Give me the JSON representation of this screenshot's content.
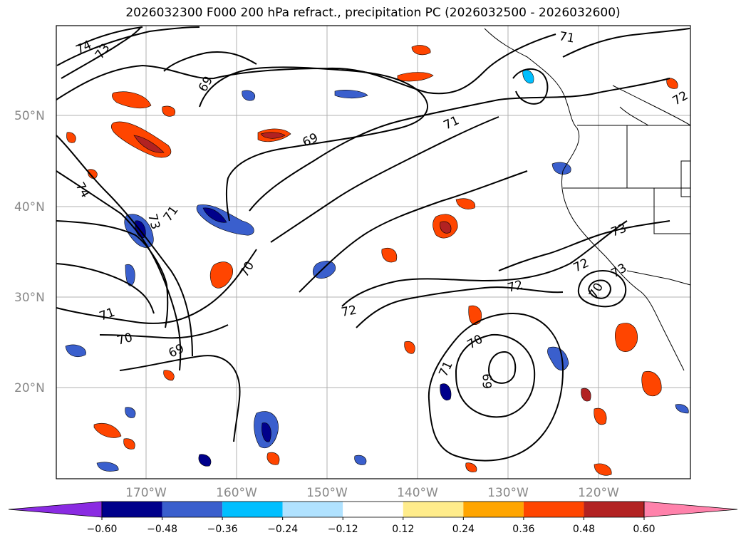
{
  "title": "2026032300 F000 200 hPa refract., precipitation PC (2026032500 - 2026032600)",
  "map": {
    "lat_ticks": [
      {
        "label": "50°N",
        "lat": 50
      },
      {
        "label": "40°N",
        "lat": 40
      },
      {
        "label": "30°N",
        "lat": 30
      },
      {
        "label": "20°N",
        "lat": 20
      }
    ],
    "lon_ticks": [
      {
        "label": "170°W",
        "lon": -170
      },
      {
        "label": "160°W",
        "lon": -160
      },
      {
        "label": "150°W",
        "lon": -150
      },
      {
        "label": "140°W",
        "lon": -140
      },
      {
        "label": "130°W",
        "lon": -130
      },
      {
        "label": "120°W",
        "lon": -120
      }
    ],
    "contour_labels": [
      "74",
      "73",
      "69",
      "69",
      "71",
      "71",
      "73",
      "71",
      "74",
      "70",
      "71",
      "70",
      "69",
      "72",
      "72",
      "70",
      "71",
      "69",
      "72",
      "73",
      "72",
      "73",
      "70"
    ]
  },
  "colorbar": {
    "colors": [
      "#8a2be2",
      "#00008b",
      "#3a5fcd",
      "#00bfff",
      "#b0e2ff",
      "#ffffff",
      "#ffec8b",
      "#ffa500",
      "#ff4500",
      "#b22222",
      "#ff82ab"
    ],
    "tick_labels": [
      "−0.60",
      "−0.48",
      "−0.36",
      "−0.24",
      "−0.12",
      "0.12",
      "0.24",
      "0.36",
      "0.48",
      "0.60"
    ]
  }
}
